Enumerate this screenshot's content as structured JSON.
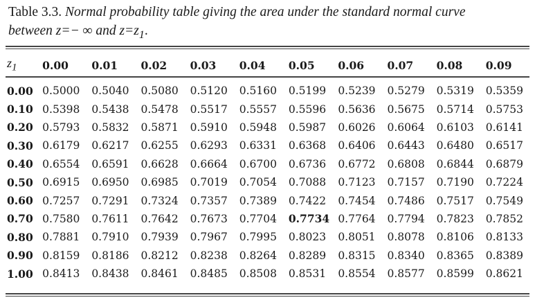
{
  "caption": {
    "label": "Table 3.3.",
    "text_line1": "Normal probability table giving the area under the standard normal curve",
    "text_line2": "between z=− ∞ and z=z",
    "subscript": "1",
    "end": "."
  },
  "table": {
    "corner_header": "z",
    "corner_subscript": "1",
    "columns": [
      "0.00",
      "0.01",
      "0.02",
      "0.03",
      "0.04",
      "0.05",
      "0.06",
      "0.07",
      "0.08",
      "0.09"
    ],
    "highlighted_cell": {
      "row": "0.70",
      "column": "0.05",
      "value": "0.7734"
    },
    "rows": [
      {
        "z": "0.00",
        "values": [
          "0.5000",
          "0.5040",
          "0.5080",
          "0.5120",
          "0.5160",
          "0.5199",
          "0.5239",
          "0.5279",
          "0.5319",
          "0.5359"
        ]
      },
      {
        "z": "0.10",
        "values": [
          "0.5398",
          "0.5438",
          "0.5478",
          "0.5517",
          "0.5557",
          "0.5596",
          "0.5636",
          "0.5675",
          "0.5714",
          "0.5753"
        ]
      },
      {
        "z": "0.20",
        "values": [
          "0.5793",
          "0.5832",
          "0.5871",
          "0.5910",
          "0.5948",
          "0.5987",
          "0.6026",
          "0.6064",
          "0.6103",
          "0.6141"
        ]
      },
      {
        "z": "0.30",
        "values": [
          "0.6179",
          "0.6217",
          "0.6255",
          "0.6293",
          "0.6331",
          "0.6368",
          "0.6406",
          "0.6443",
          "0.6480",
          "0.6517"
        ]
      },
      {
        "z": "0.40",
        "values": [
          "0.6554",
          "0.6591",
          "0.6628",
          "0.6664",
          "0.6700",
          "0.6736",
          "0.6772",
          "0.6808",
          "0.6844",
          "0.6879"
        ]
      },
      {
        "z": "0.50",
        "values": [
          "0.6915",
          "0.6950",
          "0.6985",
          "0.7019",
          "0.7054",
          "0.7088",
          "0.7123",
          "0.7157",
          "0.7190",
          "0.7224"
        ]
      },
      {
        "z": "0.60",
        "values": [
          "0.7257",
          "0.7291",
          "0.7324",
          "0.7357",
          "0.7389",
          "0.7422",
          "0.7454",
          "0.7486",
          "0.7517",
          "0.7549"
        ]
      },
      {
        "z": "0.70",
        "values": [
          "0.7580",
          "0.7611",
          "0.7642",
          "0.7673",
          "0.7704",
          "0.7734",
          "0.7764",
          "0.7794",
          "0.7823",
          "0.7852"
        ]
      },
      {
        "z": "0.80",
        "values": [
          "0.7881",
          "0.7910",
          "0.7939",
          "0.7967",
          "0.7995",
          "0.8023",
          "0.8051",
          "0.8078",
          "0.8106",
          "0.8133"
        ]
      },
      {
        "z": "0.90",
        "values": [
          "0.8159",
          "0.8186",
          "0.8212",
          "0.8238",
          "0.8264",
          "0.8289",
          "0.8315",
          "0.8340",
          "0.8365",
          "0.8389"
        ]
      },
      {
        "z": "1.00",
        "values": [
          "0.8413",
          "0.8438",
          "0.8461",
          "0.8485",
          "0.8508",
          "0.8531",
          "0.8554",
          "0.8577",
          "0.8599",
          "0.8621"
        ]
      }
    ]
  }
}
